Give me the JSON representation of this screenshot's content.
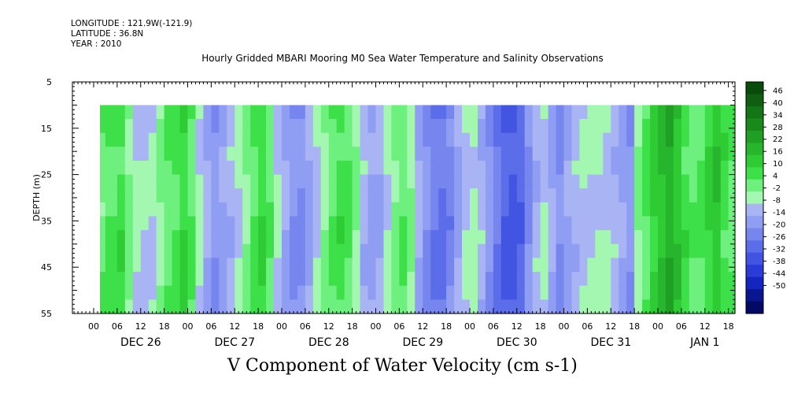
{
  "header": {
    "longitude": "LONGITUDE : 121.9W(-121.9)",
    "latitude": "LATITUDE : 36.8N",
    "year": "YEAR : 2010"
  },
  "chart_data": {
    "type": "heatmap",
    "title": "Hourly Gridded MBARI Mooring M0 Sea Water Temperature and Salinity Observations",
    "xlabel": "V Component of Water Velocity (cm s-1)",
    "ylabel": "DEPTH (m)",
    "y_axis": {
      "range": [
        5,
        55
      ],
      "inverted": true,
      "ticks": [
        5,
        15,
        25,
        35,
        45,
        55
      ]
    },
    "data_depth_range": [
      10,
      55
    ],
    "x_hour_tick_labels": [
      "00",
      "06",
      "12",
      "18",
      "00",
      "06",
      "12",
      "18",
      "00",
      "06",
      "12",
      "18",
      "00",
      "06",
      "12",
      "18",
      "00",
      "06",
      "12",
      "18",
      "00",
      "06",
      "12",
      "18",
      "00",
      "06",
      "12",
      "18"
    ],
    "x_day_labels": [
      "DEC 26",
      "DEC 27",
      "DEC 28",
      "DEC 29",
      "DEC 30",
      "DEC 31",
      "JAN 1"
    ],
    "colorbar": {
      "tick_labels": [
        "46",
        "40",
        "34",
        "28",
        "22",
        "16",
        "10",
        "4",
        "-2",
        "-8",
        "-14",
        "-20",
        "-26",
        "-32",
        "-38",
        "-44",
        "-50"
      ],
      "colors": [
        "#0a4a0a",
        "#0f5e12",
        "#137516",
        "#188a1c",
        "#1f9f24",
        "#26b52c",
        "#2ecb35",
        "#3ee04a",
        "#6ef07e",
        "#a4f7b0",
        "#a9b4f5",
        "#8f9ef2",
        "#7686ee",
        "#5c6de9",
        "#4254e2",
        "#2a3bd8",
        "#1526c0",
        "#0a1590",
        "#030a66"
      ]
    },
    "velocity_profile": {
      "description_units": "cm s-1",
      "columns_hour_offset_from_dec26_00": [
        -5,
        -3,
        0,
        3,
        6,
        8,
        10,
        12,
        14,
        16,
        18,
        20,
        22,
        24,
        26,
        28,
        30,
        32,
        34,
        36,
        38,
        40,
        42,
        44,
        46,
        48,
        50,
        52,
        54,
        56,
        58,
        60,
        62,
        64,
        66,
        68,
        70,
        72,
        74,
        76,
        78,
        80,
        82,
        84,
        86,
        88,
        90,
        92,
        94,
        96,
        98,
        100,
        102,
        104,
        106,
        108,
        110,
        112,
        114,
        116,
        118,
        120,
        122,
        124,
        126,
        128,
        130,
        132,
        134,
        136,
        138,
        140,
        142,
        144,
        146,
        148,
        150,
        152,
        154,
        156,
        158,
        160,
        162
      ],
      "values": [
        2,
        3,
        5,
        8,
        10,
        4,
        -2,
        -4,
        -3,
        2,
        6,
        9,
        12,
        7,
        -2,
        -8,
        -12,
        -10,
        -6,
        -2,
        3,
        8,
        11,
        6,
        -3,
        -9,
        -13,
        -14,
        -10,
        -4,
        2,
        7,
        10,
        8,
        2,
        -6,
        -10,
        -8,
        -2,
        4,
        6,
        2,
        -8,
        -14,
        -18,
        -20,
        -16,
        -10,
        -4,
        -1,
        -6,
        -12,
        -18,
        -24,
        -26,
        -22,
        -14,
        -6,
        -3,
        -8,
        -14,
        -10,
        -6,
        -4,
        -3,
        -2,
        -3,
        -6,
        -10,
        -12,
        2,
        8,
        14,
        18,
        22,
        16,
        10,
        6,
        8,
        12,
        16,
        10,
        6
      ]
    }
  }
}
